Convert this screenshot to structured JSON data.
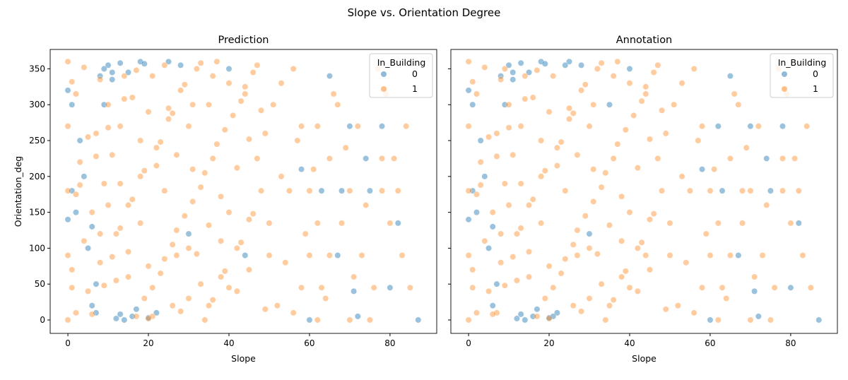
{
  "chart_data": {
    "type": "scatter",
    "title": "Slope vs. Orientation Degree",
    "colors": {
      "0": "#1f77b4",
      "1": "#ff7f0e"
    },
    "legend": {
      "title": "In_Building",
      "entries": [
        "0",
        "1"
      ],
      "placement": "top-right"
    },
    "xlim": [
      -4.4,
      91.6
    ],
    "ylim": [
      -18.7,
      377
    ],
    "xticks": [
      0,
      20,
      40,
      60,
      80
    ],
    "yticks": [
      0,
      50,
      100,
      150,
      200,
      250,
      300,
      350
    ],
    "ylabel": "Orientation_deg",
    "panels": [
      {
        "title": "Prediction",
        "xlabel": "Slope",
        "hue_index": 2
      },
      {
        "title": "Annotation",
        "xlabel": "Slope",
        "hue_index": 3
      }
    ],
    "point_fields": [
      "Slope",
      "Orientation_deg",
      "Prediction",
      "Annotation"
    ],
    "points": [
      [
        10,
        355,
        0,
        0
      ],
      [
        13,
        358,
        0,
        0
      ],
      [
        15,
        345,
        0,
        0
      ],
      [
        18,
        360,
        0,
        0
      ],
      [
        8,
        340,
        0,
        0
      ],
      [
        12,
        2,
        0,
        0
      ],
      [
        14,
        0,
        0,
        0
      ],
      [
        16,
        5,
        0,
        0
      ],
      [
        20,
        3,
        0,
        0
      ],
      [
        22,
        10,
        0,
        0
      ],
      [
        6,
        20,
        0,
        0
      ],
      [
        9,
        300,
        0,
        0
      ],
      [
        3,
        250,
        0,
        0
      ],
      [
        2,
        150,
        0,
        0
      ],
      [
        5,
        100,
        0,
        0
      ],
      [
        7,
        50,
        0,
        0
      ],
      [
        25,
        360,
        0,
        0
      ],
      [
        28,
        355,
        0,
        0
      ],
      [
        11,
        335,
        0,
        0
      ],
      [
        17,
        15,
        0,
        0
      ],
      [
        60,
        0,
        0,
        0
      ],
      [
        70,
        270,
        0,
        0
      ],
      [
        75,
        180,
        0,
        0
      ],
      [
        80,
        45,
        0,
        0
      ],
      [
        87,
        0,
        0,
        0
      ],
      [
        65,
        340,
        0,
        0
      ],
      [
        72,
        5,
        0,
        0
      ],
      [
        82,
        135,
        0,
        0
      ],
      [
        58,
        210,
        0,
        0
      ],
      [
        4,
        200,
        0,
        0
      ],
      [
        30,
        120,
        0,
        0
      ],
      [
        40,
        350,
        0,
        0
      ],
      [
        1,
        300,
        0,
        0
      ],
      [
        11,
        345,
        0,
        0
      ],
      [
        19,
        357,
        0,
        0
      ],
      [
        13,
        8,
        0,
        0
      ],
      [
        0,
        320,
        0,
        0
      ],
      [
        0,
        140,
        0,
        0
      ],
      [
        1,
        180,
        0,
        0
      ],
      [
        6,
        130,
        0,
        0
      ],
      [
        67,
        90,
        0,
        0
      ],
      [
        74,
        225,
        0,
        0
      ],
      [
        78,
        270,
        0,
        0
      ],
      [
        63,
        180,
        0,
        0
      ],
      [
        71,
        40,
        0,
        0
      ],
      [
        24,
        355,
        1,
        0
      ],
      [
        9,
        350,
        0,
        1
      ],
      [
        21,
        5,
        1,
        0
      ],
      [
        7,
        10,
        0,
        1
      ],
      [
        62,
        270,
        1,
        0
      ],
      [
        68,
        180,
        0,
        1
      ],
      [
        35,
        300,
        1,
        0
      ],
      [
        44,
        90,
        0,
        1
      ],
      [
        2,
        10,
        1,
        1
      ],
      [
        5,
        40,
        1,
        1
      ],
      [
        8,
        80,
        1,
        1
      ],
      [
        12,
        120,
        1,
        1
      ],
      [
        15,
        160,
        1,
        1
      ],
      [
        18,
        200,
        1,
        1
      ],
      [
        22,
        240,
        1,
        1
      ],
      [
        25,
        280,
        1,
        1
      ],
      [
        28,
        320,
        1,
        1
      ],
      [
        32,
        350,
        1,
        1
      ],
      [
        35,
        20,
        1,
        1
      ],
      [
        38,
        60,
        1,
        1
      ],
      [
        42,
        100,
        1,
        1
      ],
      [
        45,
        140,
        1,
        1
      ],
      [
        48,
        180,
        1,
        1
      ],
      [
        3,
        220,
        1,
        1
      ],
      [
        7,
        260,
        1,
        1
      ],
      [
        10,
        300,
        1,
        1
      ],
      [
        14,
        340,
        1,
        1
      ],
      [
        17,
        5,
        1,
        1
      ],
      [
        21,
        45,
        1,
        1
      ],
      [
        24,
        85,
        1,
        1
      ],
      [
        27,
        125,
        1,
        1
      ],
      [
        31,
        165,
        1,
        1
      ],
      [
        34,
        205,
        1,
        1
      ],
      [
        37,
        245,
        1,
        1
      ],
      [
        41,
        285,
        1,
        1
      ],
      [
        44,
        325,
        1,
        1
      ],
      [
        47,
        355,
        1,
        1
      ],
      [
        1,
        70,
        1,
        1
      ],
      [
        4,
        110,
        1,
        1
      ],
      [
        6,
        150,
        1,
        1
      ],
      [
        9,
        190,
        1,
        1
      ],
      [
        11,
        230,
        1,
        1
      ],
      [
        13,
        270,
        1,
        1
      ],
      [
        16,
        310,
        1,
        1
      ],
      [
        19,
        30,
        1,
        1
      ],
      [
        23,
        65,
        1,
        1
      ],
      [
        26,
        105,
        1,
        1
      ],
      [
        29,
        145,
        1,
        1
      ],
      [
        33,
        185,
        1,
        1
      ],
      [
        36,
        225,
        1,
        1
      ],
      [
        39,
        265,
        1,
        1
      ],
      [
        43,
        305,
        1,
        1
      ],
      [
        46,
        345,
        1,
        1
      ],
      [
        49,
        15,
        1,
        1
      ],
      [
        2,
        175,
        1,
        1
      ],
      [
        5,
        255,
        1,
        1
      ],
      [
        8,
        335,
        1,
        1
      ],
      [
        12,
        55,
        1,
        1
      ],
      [
        15,
        95,
        1,
        1
      ],
      [
        18,
        135,
        1,
        1
      ],
      [
        22,
        215,
        1,
        1
      ],
      [
        25,
        295,
        1,
        1
      ],
      [
        28,
        12,
        1,
        1
      ],
      [
        32,
        92,
        1,
        1
      ],
      [
        35,
        132,
        1,
        1
      ],
      [
        38,
        172,
        1,
        1
      ],
      [
        42,
        212,
        1,
        1
      ],
      [
        45,
        252,
        1,
        1
      ],
      [
        48,
        292,
        1,
        1
      ],
      [
        1,
        332,
        1,
        1
      ],
      [
        4,
        352,
        1,
        1
      ],
      [
        6,
        8,
        1,
        1
      ],
      [
        9,
        48,
        1,
        1
      ],
      [
        11,
        88,
        1,
        1
      ],
      [
        13,
        128,
        1,
        1
      ],
      [
        16,
        168,
        1,
        1
      ],
      [
        19,
        208,
        1,
        1
      ],
      [
        23,
        248,
        1,
        1
      ],
      [
        26,
        288,
        1,
        1
      ],
      [
        29,
        328,
        1,
        1
      ],
      [
        33,
        358,
        1,
        1
      ],
      [
        36,
        28,
        1,
        1
      ],
      [
        39,
        68,
        1,
        1
      ],
      [
        43,
        108,
        1,
        1
      ],
      [
        46,
        148,
        1,
        1
      ],
      [
        3,
        188,
        1,
        1
      ],
      [
        7,
        228,
        1,
        1
      ],
      [
        10,
        268,
        1,
        1
      ],
      [
        14,
        308,
        1,
        1
      ],
      [
        17,
        348,
        1,
        1
      ],
      [
        20,
        2,
        1,
        1
      ],
      [
        24,
        180,
        1,
        1
      ],
      [
        27,
        90,
        1,
        1
      ],
      [
        30,
        270,
        1,
        1
      ],
      [
        34,
        0,
        1,
        1
      ],
      [
        37,
        360,
        1,
        1
      ],
      [
        40,
        45,
        1,
        1
      ],
      [
        44,
        315,
        1,
        1
      ],
      [
        47,
        225,
        1,
        1
      ],
      [
        50,
        135,
        1,
        1
      ],
      [
        52,
        20,
        1,
        1
      ],
      [
        51,
        300,
        1,
        1
      ],
      [
        53,
        200,
        1,
        1
      ],
      [
        0,
        0,
        1,
        1
      ],
      [
        0,
        90,
        1,
        1
      ],
      [
        0,
        180,
        1,
        1
      ],
      [
        0,
        270,
        1,
        1
      ],
      [
        0,
        360,
        1,
        1
      ],
      [
        1,
        45,
        1,
        1
      ],
      [
        2,
        315,
        1,
        1
      ],
      [
        30,
        30,
        1,
        1
      ],
      [
        31,
        210,
        1,
        1
      ],
      [
        20,
        75,
        1,
        1
      ],
      [
        20,
        290,
        1,
        1
      ],
      [
        40,
        150,
        1,
        1
      ],
      [
        40,
        330,
        1,
        1
      ],
      [
        15,
        60,
        1,
        1
      ],
      [
        26,
        20,
        1,
        1
      ],
      [
        33,
        50,
        1,
        1
      ],
      [
        38,
        110,
        1,
        1
      ],
      [
        10,
        160,
        1,
        1
      ],
      [
        30,
        100,
        1,
        1
      ],
      [
        36,
        340,
        1,
        1
      ],
      [
        42,
        40,
        1,
        1
      ],
      [
        27,
        230,
        1,
        1
      ],
      [
        18,
        250,
        1,
        1
      ],
      [
        45,
        70,
        1,
        1
      ],
      [
        49,
        260,
        1,
        1
      ],
      [
        50,
        90,
        1,
        1
      ],
      [
        21,
        340,
        1,
        1
      ],
      [
        31,
        300,
        1,
        1
      ],
      [
        13,
        190,
        1,
        1
      ],
      [
        8,
        120,
        1,
        1
      ],
      [
        55,
        180,
        1,
        1
      ],
      [
        58,
        270,
        1,
        1
      ],
      [
        60,
        90,
        1,
        1
      ],
      [
        62,
        0,
        1,
        1
      ],
      [
        63,
        45,
        1,
        1
      ],
      [
        65,
        225,
        1,
        1
      ],
      [
        66,
        315,
        1,
        1
      ],
      [
        68,
        135,
        1,
        1
      ],
      [
        70,
        180,
        1,
        1
      ],
      [
        72,
        270,
        1,
        1
      ],
      [
        73,
        90,
        1,
        1
      ],
      [
        75,
        0,
        1,
        1
      ],
      [
        76,
        45,
        1,
        1
      ],
      [
        78,
        225,
        1,
        1
      ],
      [
        79,
        315,
        1,
        1
      ],
      [
        80,
        135,
        1,
        1
      ],
      [
        82,
        180,
        1,
        1
      ],
      [
        84,
        270,
        1,
        1
      ],
      [
        56,
        350,
        1,
        1
      ],
      [
        59,
        120,
        1,
        1
      ],
      [
        61,
        210,
        1,
        1
      ],
      [
        64,
        30,
        1,
        1
      ],
      [
        67,
        300,
        1,
        1
      ],
      [
        69,
        240,
        1,
        1
      ],
      [
        71,
        60,
        1,
        1
      ],
      [
        74,
        160,
        1,
        1
      ],
      [
        77,
        350,
        1,
        1
      ],
      [
        83,
        90,
        1,
        1
      ],
      [
        85,
        45,
        1,
        1
      ],
      [
        57,
        250,
        1,
        1
      ],
      [
        54,
        80,
        1,
        1
      ],
      [
        60,
        180,
        1,
        1
      ],
      [
        65,
        90,
        1,
        1
      ],
      [
        70,
        0,
        1,
        1
      ],
      [
        78,
        180,
        1,
        1
      ],
      [
        81,
        225,
        1,
        1
      ],
      [
        62,
        135,
        1,
        1
      ],
      [
        56,
        10,
        1,
        1
      ],
      [
        53,
        330,
        1,
        1
      ],
      [
        58,
        45,
        1,
        1
      ]
    ]
  }
}
